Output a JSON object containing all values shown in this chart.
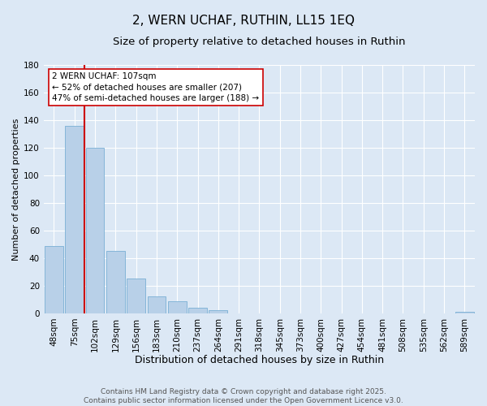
{
  "title": "2, WERN UCHAF, RUTHIN, LL15 1EQ",
  "subtitle": "Size of property relative to detached houses in Ruthin",
  "xlabel": "Distribution of detached houses by size in Ruthin",
  "ylabel": "Number of detached properties",
  "bar_labels": [
    "48sqm",
    "75sqm",
    "102sqm",
    "129sqm",
    "156sqm",
    "183sqm",
    "210sqm",
    "237sqm",
    "264sqm",
    "291sqm",
    "318sqm",
    "345sqm",
    "373sqm",
    "400sqm",
    "427sqm",
    "454sqm",
    "481sqm",
    "508sqm",
    "535sqm",
    "562sqm",
    "589sqm"
  ],
  "bar_values": [
    49,
    136,
    120,
    45,
    25,
    12,
    9,
    4,
    2,
    0,
    0,
    0,
    0,
    0,
    0,
    0,
    0,
    0,
    0,
    0,
    1
  ],
  "bar_color": "#b8d0e8",
  "bar_edge_color": "#7aafd4",
  "vline_position": 1.5,
  "vline_color": "#cc0000",
  "annotation_title": "2 WERN UCHAF: 107sqm",
  "annotation_line1": "← 52% of detached houses are smaller (207)",
  "annotation_line2": "47% of semi-detached houses are larger (188) →",
  "annotation_box_facecolor": "#ffffff",
  "annotation_box_edgecolor": "#cc0000",
  "ylim": [
    0,
    180
  ],
  "yticks": [
    0,
    20,
    40,
    60,
    80,
    100,
    120,
    140,
    160,
    180
  ],
  "background_color": "#dce8f5",
  "grid_color": "#ffffff",
  "footer_line1": "Contains HM Land Registry data © Crown copyright and database right 2025.",
  "footer_line2": "Contains public sector information licensed under the Open Government Licence v3.0.",
  "title_fontsize": 11,
  "subtitle_fontsize": 9.5,
  "xlabel_fontsize": 9,
  "ylabel_fontsize": 8,
  "tick_fontsize": 7.5,
  "footer_fontsize": 6.5
}
